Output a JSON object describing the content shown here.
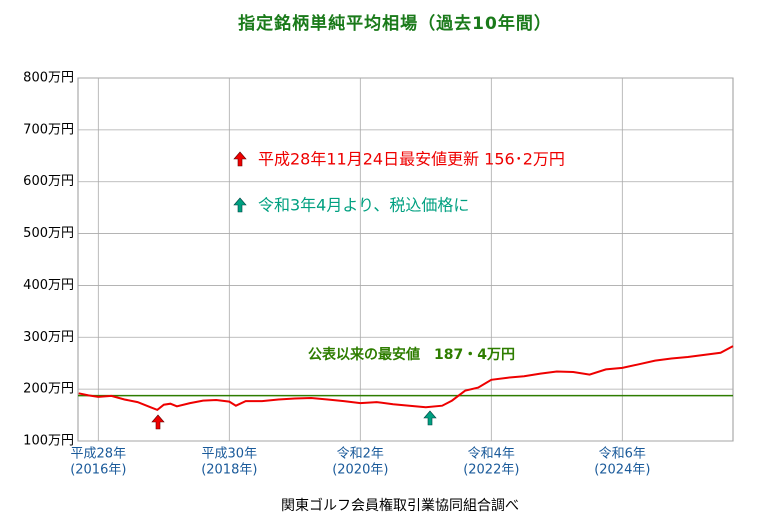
{
  "chart_data": {
    "type": "line",
    "title": "指定銘柄単純平均相場（過去10年間）",
    "source": "関東ゴルフ会員権取引業協同組合調べ",
    "x": [
      2015.7,
      2015.85,
      2016.0,
      2016.2,
      2016.4,
      2016.6,
      2016.8,
      2016.9,
      2017.0,
      2017.1,
      2017.2,
      2017.4,
      2017.6,
      2017.8,
      2018.0,
      2018.1,
      2018.25,
      2018.5,
      2018.75,
      2019.0,
      2019.25,
      2019.5,
      2019.75,
      2020.0,
      2020.25,
      2020.5,
      2020.75,
      2021.0,
      2021.25,
      2021.4,
      2021.6,
      2021.8,
      2022.0,
      2022.25,
      2022.5,
      2022.75,
      2023.0,
      2023.25,
      2023.5,
      2023.75,
      2024.0,
      2024.25,
      2024.5,
      2024.75,
      2025.0,
      2025.25,
      2025.5,
      2025.69
    ],
    "series": [
      {
        "color": "#ee0000",
        "values": [
          192,
          188,
          185,
          187,
          180,
          175,
          165,
          160,
          170,
          172,
          167,
          173,
          178,
          179,
          176,
          168,
          177,
          177,
          180,
          182,
          183,
          180,
          177,
          173,
          175,
          171,
          168,
          165,
          168,
          178,
          197,
          203,
          218,
          222,
          225,
          230,
          234,
          233,
          228,
          238,
          241,
          248,
          255,
          259,
          262,
          266,
          270,
          283
        ]
      }
    ],
    "xlim": [
      2015.69,
      2025.69
    ],
    "xticks": [
      {
        "value": 2016,
        "label": [
          "平成28年",
          "(2016年)"
        ]
      },
      {
        "value": 2018,
        "label": [
          "平成30年",
          "(2018年)"
        ]
      },
      {
        "value": 2020,
        "label": [
          "令和2年",
          "(2020年)"
        ]
      },
      {
        "value": 2022,
        "label": [
          "令和4年",
          "(2022年)"
        ]
      },
      {
        "value": 2024,
        "label": [
          "令和6年",
          "(2024年)"
        ]
      }
    ],
    "ylim": [
      100,
      800
    ],
    "yticks": [
      {
        "value": 100,
        "label": "100万円"
      },
      {
        "value": 200,
        "label": "200万円"
      },
      {
        "value": 300,
        "label": "300万円"
      },
      {
        "value": 400,
        "label": "400万円"
      },
      {
        "value": 500,
        "label": "500万円"
      },
      {
        "value": 600,
        "label": "600万円"
      },
      {
        "value": 700,
        "label": "700万円"
      },
      {
        "value": 800,
        "label": "800万円"
      }
    ],
    "grid": true,
    "reference_line": {
      "value": 187.4,
      "color": "#2e7d00",
      "label": "公表以来の最安値　187・4万円"
    },
    "annotations": [
      {
        "text": "平成28年11月24日最安値更新 156･2万円",
        "color": "#ee0000"
      },
      {
        "text": "令和3年4月より、税込価格に",
        "color": "#00a080"
      }
    ]
  }
}
